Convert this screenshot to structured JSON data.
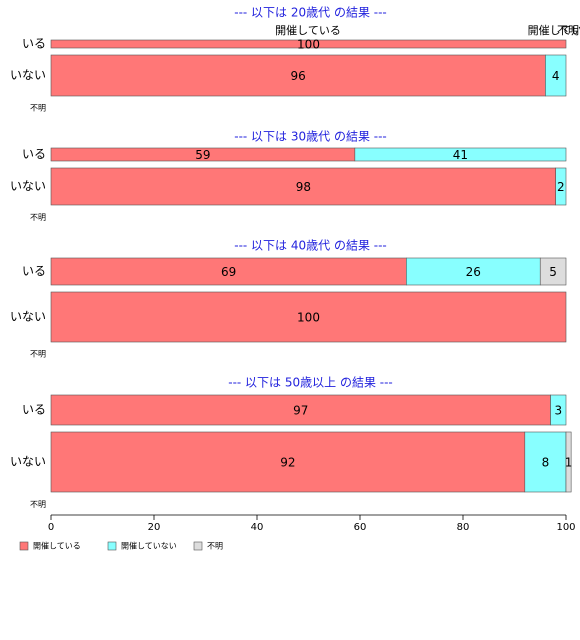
{
  "chart_data": {
    "type": "bar",
    "orientation": "horizontal",
    "stacked": true,
    "normalized_percent": true,
    "xlim": [
      0,
      100
    ],
    "x_ticks": [
      0,
      20,
      40,
      60,
      80,
      100
    ],
    "series_names": [
      "開催している",
      "開催していない",
      "不明"
    ],
    "series_colors": [
      "#ff7777",
      "#88ffff",
      "#dddddd"
    ],
    "title_color": "#2222dd",
    "legend": {
      "position": "bottom-left",
      "items": [
        {
          "label": "開催している",
          "color": "#ff7777"
        },
        {
          "label": "開催していない",
          "color": "#88ffff"
        },
        {
          "label": "不明",
          "color": "#dddddd"
        }
      ]
    },
    "panels": [
      {
        "title": "--- 以下は 20歳代 の結果 ---",
        "series_labels_above": [
          "開催している",
          "開催していない",
          "不明"
        ],
        "rows": [
          {
            "label": "いる",
            "values": [
              100,
              0,
              0
            ]
          },
          {
            "label": "いない",
            "values": [
              96,
              4,
              0
            ]
          },
          {
            "label": "不明",
            "values": [
              0,
              0,
              0
            ]
          }
        ]
      },
      {
        "title": "--- 以下は 30歳代 の結果 ---",
        "rows": [
          {
            "label": "いる",
            "values": [
              59,
              41,
              0
            ]
          },
          {
            "label": "いない",
            "values": [
              98,
              2,
              0
            ]
          },
          {
            "label": "不明",
            "values": [
              0,
              0,
              0
            ]
          }
        ]
      },
      {
        "title": "--- 以下は 40歳代 の結果 ---",
        "rows": [
          {
            "label": "いる",
            "values": [
              69,
              26,
              5
            ]
          },
          {
            "label": "いない",
            "values": [
              100,
              0,
              0
            ]
          },
          {
            "label": "不明",
            "values": [
              0,
              0,
              0
            ]
          }
        ]
      },
      {
        "title": "--- 以下は 50歳以上 の結果 ---",
        "rows": [
          {
            "label": "いる",
            "values": [
              97,
              3,
              0
            ]
          },
          {
            "label": "いない",
            "values": [
              92,
              8,
              1
            ]
          },
          {
            "label": "不明",
            "values": [
              0,
              0,
              0
            ]
          }
        ]
      }
    ]
  }
}
